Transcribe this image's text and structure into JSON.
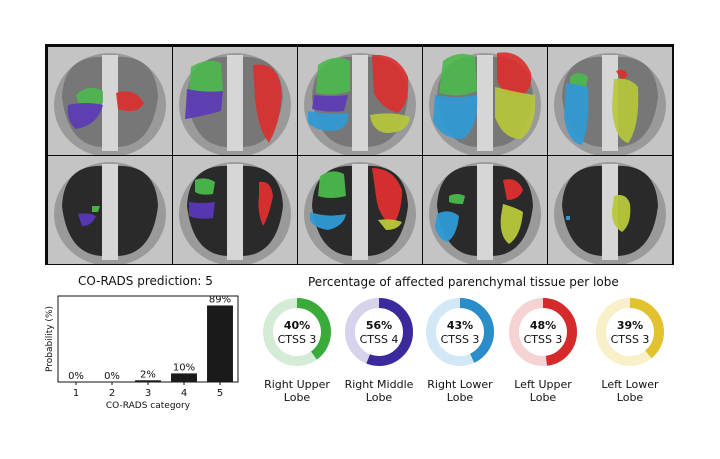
{
  "co_rads_title": "CO-RADS prediction: 5",
  "lobe_title": "Percentage of affected parenchymal tissue per lobe",
  "chart_data": [
    {
      "type": "bar",
      "title": "CO-RADS prediction: 5",
      "xlabel": "CO-RADS category",
      "ylabel": "Probability (%)",
      "categories": [
        "1",
        "2",
        "3",
        "4",
        "5"
      ],
      "values": [
        0,
        0,
        2,
        10,
        89
      ],
      "value_labels": [
        "0%",
        "0%",
        "2%",
        "10%",
        "89%"
      ],
      "ylim": [
        0,
        100
      ],
      "grid": false,
      "bar_color": "#1a1a1a"
    },
    {
      "type": "pie",
      "title": "Percentage of affected parenchymal tissue per lobe",
      "lobes": [
        {
          "label_line1": "Right Upper",
          "label_line2": "Lobe",
          "percent": 40,
          "percent_label": "40%",
          "ctss": "CTSS 3",
          "color": "#3aaa3a",
          "light": "#d4ecd6"
        },
        {
          "label_line1": "Right Middle",
          "label_line2": "Lobe",
          "percent": 56,
          "percent_label": "56%",
          "ctss": "CTSS 4",
          "color": "#3a2a9c",
          "light": "#d7d3ec"
        },
        {
          "label_line1": "Right Lower",
          "label_line2": "Lobe",
          "percent": 43,
          "percent_label": "43%",
          "ctss": "CTSS 3",
          "color": "#2a8cc8",
          "light": "#d2e8f6"
        },
        {
          "label_line1": "Left Upper",
          "label_line2": "Lobe",
          "percent": 48,
          "percent_label": "48%",
          "ctss": "CTSS 3",
          "color": "#d42a2a",
          "light": "#f6d3d3"
        },
        {
          "label_line1": "Left Lower",
          "label_line2": "Lobe",
          "percent": 39,
          "percent_label": "39%",
          "ctss": "CTSS 3",
          "color": "#e2c22e",
          "light": "#f8f0c8"
        }
      ]
    }
  ]
}
